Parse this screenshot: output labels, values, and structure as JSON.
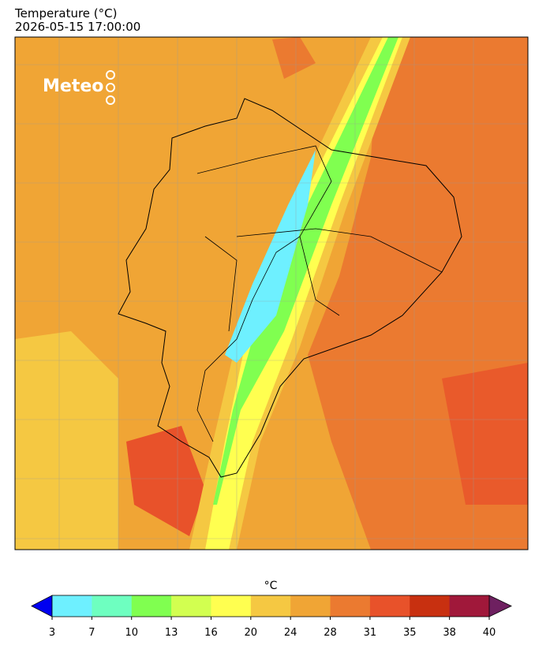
{
  "header": {
    "title": "Temperature (°C)",
    "datetime": "2026-05-15 17:00:00"
  },
  "logo": "Meteo",
  "colorbar": {
    "label": "°C",
    "ticks": [
      3,
      7,
      10,
      13,
      16,
      20,
      24,
      28,
      31,
      35,
      38,
      40
    ],
    "colors": [
      "#6ef0ff",
      "#6effc0",
      "#80ff50",
      "#d2ff50",
      "#ffff50",
      "#f5c842",
      "#f0a535",
      "#eb7a30",
      "#e8522a",
      "#c83010",
      "#a0183a"
    ],
    "under_color": "#0000f0",
    "over_color": "#6e2060"
  }
}
